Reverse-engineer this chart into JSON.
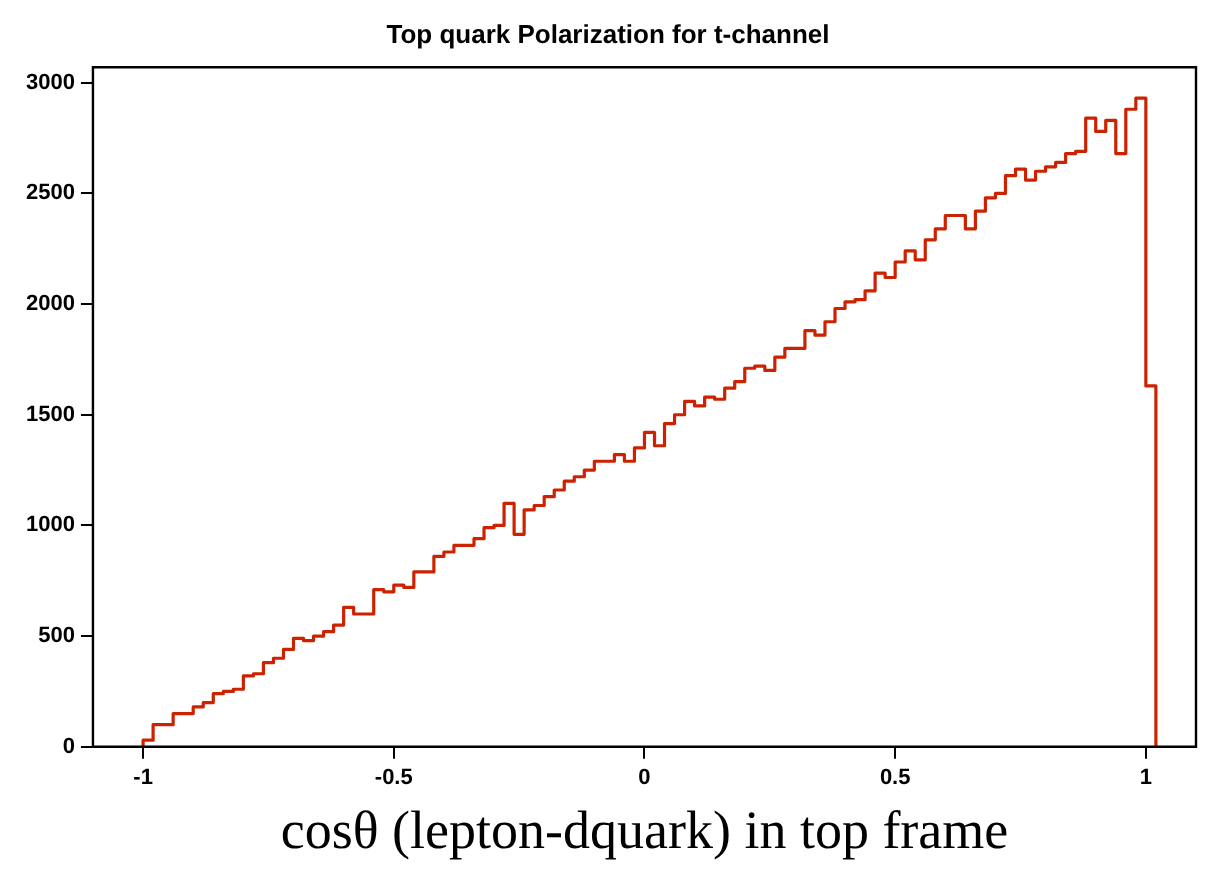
{
  "chart_data": {
    "type": "histogram",
    "title": "Top quark Polarization for t-channel",
    "xlabel": "cosθ (lepton-dquark) in top frame",
    "color": "#cc2200",
    "bins": [
      -1,
      -0.98,
      -0.96,
      -0.94,
      -0.92,
      -0.9,
      -0.88,
      -0.86,
      -0.84,
      -0.82,
      -0.8,
      -0.78,
      -0.76,
      -0.74,
      -0.72,
      -0.7,
      -0.68,
      -0.66,
      -0.64,
      -0.62,
      -0.6,
      -0.58,
      -0.56,
      -0.54,
      -0.52,
      -0.5,
      -0.48,
      -0.46,
      -0.44,
      -0.42,
      -0.4,
      -0.38,
      -0.36,
      -0.34,
      -0.32,
      -0.3,
      -0.28,
      -0.26,
      -0.24,
      -0.22,
      -0.2,
      -0.18,
      -0.16,
      -0.14,
      -0.12,
      -0.1,
      -0.08,
      -0.06,
      -0.04,
      -0.02,
      0,
      0.02,
      0.04,
      0.06,
      0.08,
      0.1,
      0.12,
      0.14,
      0.16,
      0.18,
      0.2,
      0.22,
      0.24,
      0.26,
      0.28,
      0.3,
      0.32,
      0.34,
      0.36,
      0.38,
      0.4,
      0.42,
      0.44,
      0.46,
      0.48,
      0.5,
      0.52,
      0.54,
      0.56,
      0.58,
      0.6,
      0.62,
      0.64,
      0.66,
      0.68,
      0.7,
      0.72,
      0.74,
      0.76,
      0.78,
      0.8,
      0.82,
      0.84,
      0.86,
      0.88,
      0.9,
      0.92,
      0.94,
      0.96,
      0.98,
      1,
      1.02
    ],
    "values": [
      30,
      100,
      100,
      150,
      150,
      180,
      200,
      240,
      250,
      260,
      320,
      330,
      380,
      400,
      440,
      490,
      480,
      500,
      520,
      550,
      630,
      600,
      600,
      710,
      700,
      730,
      720,
      790,
      790,
      860,
      880,
      910,
      910,
      940,
      990,
      1000,
      1100,
      960,
      1070,
      1090,
      1130,
      1160,
      1200,
      1220,
      1250,
      1290,
      1290,
      1320,
      1290,
      1350,
      1420,
      1360,
      1460,
      1500,
      1560,
      1540,
      1580,
      1570,
      1620,
      1650,
      1710,
      1720,
      1700,
      1760,
      1800,
      1800,
      1880,
      1860,
      1920,
      1980,
      2010,
      2020,
      2060,
      2140,
      2120,
      2190,
      2240,
      2200,
      2290,
      2340,
      2400,
      2400,
      2340,
      2420,
      2480,
      2500,
      2580,
      2610,
      2560,
      2600,
      2620,
      2640,
      2680,
      2690,
      2840,
      2780,
      2830,
      2680,
      2880,
      2930,
      1630
    ],
    "xlim": [
      -1.1,
      1.1
    ],
    "xticks": [
      -1,
      -0.5,
      0,
      0.5,
      1
    ],
    "ylim": [
      0,
      3070
    ],
    "yticks": [
      0,
      500,
      1000,
      1500,
      2000,
      2500,
      3000
    ],
    "grid": false,
    "legend": false
  }
}
